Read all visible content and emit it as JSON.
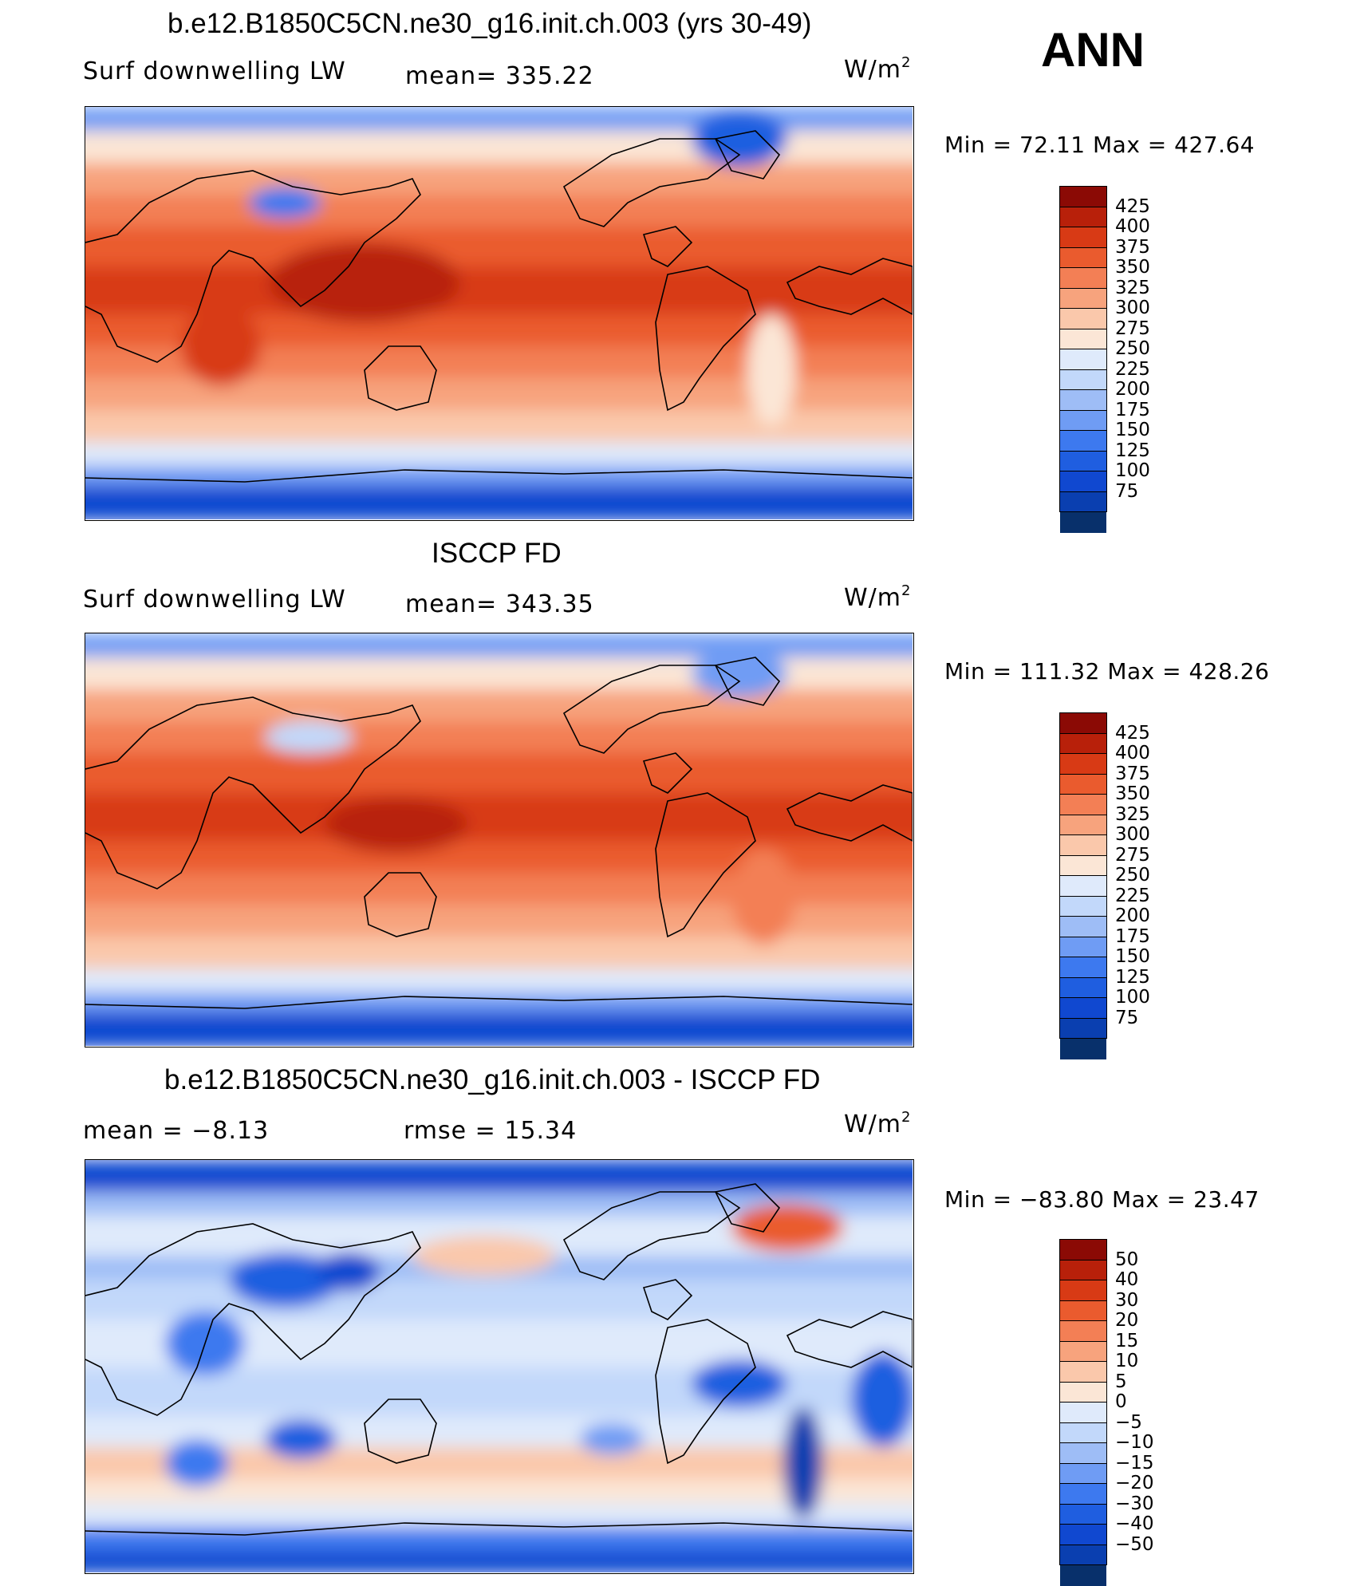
{
  "season": "ANN",
  "colors": {
    "downwelling": [
      "#08306b",
      "#0a3fb0",
      "#1048d0",
      "#1f5ee0",
      "#3d79ef",
      "#6f9cf4",
      "#9ebdf6",
      "#c2d8fa",
      "#dfeafb",
      "#fbe6d6",
      "#fac8ab",
      "#f7a37d",
      "#f37f55",
      "#ea5b2e",
      "#d83a15",
      "#b8200a",
      "#8b0a05"
    ],
    "difference": [
      "#08306b",
      "#0a3fb0",
      "#1048d0",
      "#1f5ee0",
      "#3d79ef",
      "#6f9cf4",
      "#9ebdf6",
      "#c2d8fa",
      "#dfeafb",
      "#fbe6d6",
      "#fac8ab",
      "#f7a37d",
      "#f37f55",
      "#ea5b2e",
      "#d83a15",
      "#b8200a",
      "#8b0a05"
    ]
  },
  "panels": [
    {
      "title": "b.e12.B1850C5CN.ne30_g16.init.ch.003 (yrs 30-49)",
      "left_label": "Surf  downwelling  LW",
      "center_label": "mean=  335.22",
      "units": "W/m",
      "units_sup": "2",
      "minmax": "Min  =    72.11  Max  =  427.64",
      "colorbar_labels": [
        "425",
        "400",
        "375",
        "350",
        "325",
        "300",
        "275",
        "250",
        "225",
        "200",
        "175",
        "150",
        "125",
        "100",
        "75"
      ],
      "field": "model"
    },
    {
      "title": "ISCCP FD",
      "left_label": "Surf  downwelling  LW",
      "center_label": "mean=  343.35",
      "units": "W/m",
      "units_sup": "2",
      "minmax": "Min  =  111.32  Max  =  428.26",
      "colorbar_labels": [
        "425",
        "400",
        "375",
        "350",
        "325",
        "300",
        "275",
        "250",
        "225",
        "200",
        "175",
        "150",
        "125",
        "100",
        "75"
      ],
      "field": "obs"
    },
    {
      "title": "b.e12.B1850C5CN.ne30_g16.init.ch.003 - ISCCP FD",
      "left_label": "mean  =    −8.13",
      "center_label": "rmse  =    15.34",
      "units": "W/m",
      "units_sup": "2",
      "minmax": "Min  = −83.80  Max  =    23.47",
      "colorbar_labels": [
        "50",
        "40",
        "30",
        "20",
        "15",
        "10",
        "5",
        "0",
        "−5",
        "−10",
        "−15",
        "−20",
        "−30",
        "−40",
        "−50"
      ],
      "field": "diff"
    }
  ]
}
